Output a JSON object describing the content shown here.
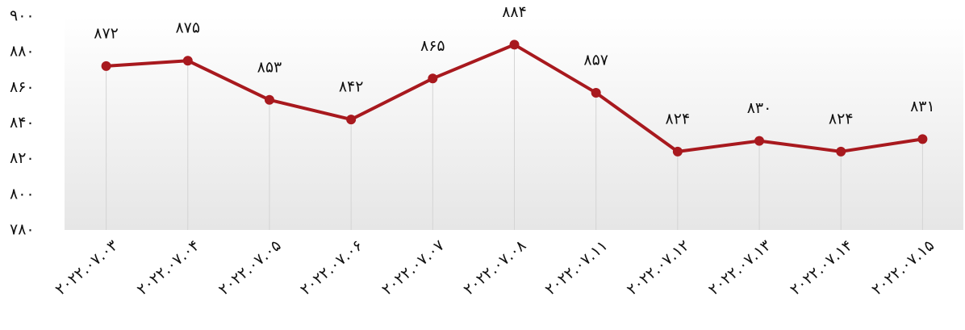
{
  "chart_data": {
    "type": "line",
    "categories": [
      "۲۰۲۲.۰۷.۰۳",
      "۲۰۲۲.۰۷.۰۴",
      "۲۰۲۲.۰۷.۰۵",
      "۲۰۲۲.۰۷.۰۶",
      "۲۰۲۲.۰۷.۰۷",
      "۲۰۲۲.۰۷.۰۸",
      "۲۰۲۲.۰۷.۱۱",
      "۲۰۲۲.۰۷.۱۲",
      "۲۰۲۲.۰۷.۱۳",
      "۲۰۲۲.۰۷.۱۴",
      "۲۰۲۲.۰۷.۱۵"
    ],
    "values": [
      872,
      875,
      853,
      842,
      865,
      884,
      857,
      824,
      830,
      824,
      831
    ],
    "value_labels": [
      "۸۷۲",
      "۸۷۵",
      "۸۵۳",
      "۸۴۲",
      "۸۶۵",
      "۸۸۴",
      "۸۵۷",
      "۸۲۴",
      "۸۳۰",
      "۸۲۴",
      "۸۳۱"
    ],
    "color": "#a8191e",
    "ylim": [
      780,
      900
    ],
    "yticks": [
      {
        "value": 780,
        "label": "۷۸۰"
      },
      {
        "value": 800,
        "label": "۸۰۰"
      },
      {
        "value": 820,
        "label": "۸۲۰"
      },
      {
        "value": 840,
        "label": "۸۴۰"
      },
      {
        "value": 860,
        "label": "۸۶۰"
      },
      {
        "value": 880,
        "label": "۸۸۰"
      },
      {
        "value": 900,
        "label": "۹۰۰"
      }
    ],
    "grid": false
  }
}
